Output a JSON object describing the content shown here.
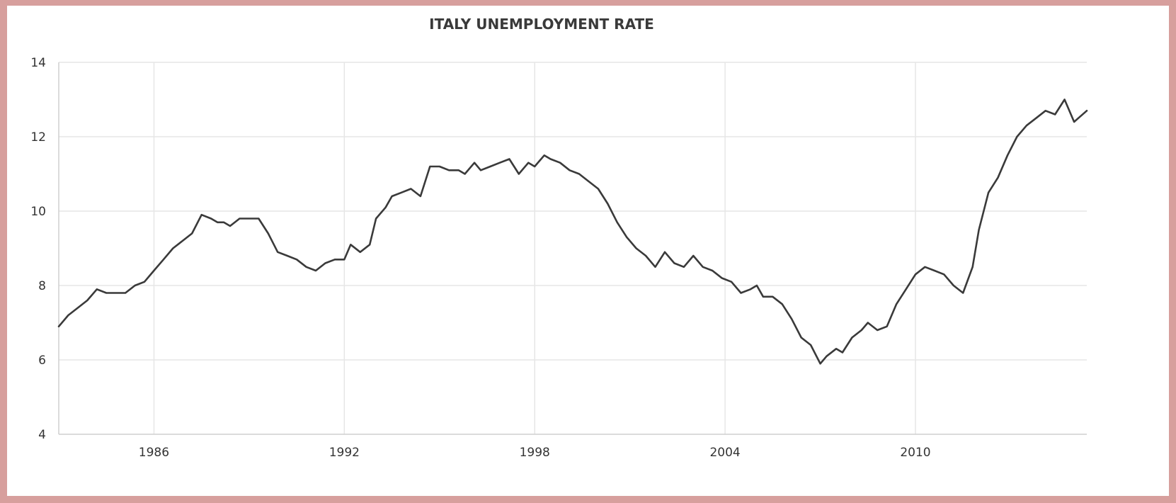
{
  "chart_data": {
    "type": "line",
    "title": "ITALY UNEMPLOYMENT RATE",
    "xlabel": "",
    "ylabel": "",
    "xlim": [
      1983.0,
      2015.4
    ],
    "ylim": [
      4,
      14
    ],
    "x_ticks": [
      1986,
      1992,
      1998,
      2004,
      2010
    ],
    "x_tick_labels": [
      "1986",
      "1992",
      "1998",
      "2004",
      "2010"
    ],
    "y_ticks": [
      4,
      6,
      8,
      10,
      12,
      14
    ],
    "y_tick_labels": [
      "4",
      "6",
      "8",
      "10",
      "12",
      "14"
    ],
    "grid": true,
    "legend": "none",
    "colors": {
      "line": "#3a3a3a",
      "grid": "#e6e6e6"
    },
    "series": [
      {
        "x": [
          1983.0,
          1983.3,
          1983.6,
          1983.9,
          1984.2,
          1984.5,
          1984.8,
          1985.1,
          1985.4,
          1985.7,
          1986.0,
          1986.3,
          1986.6,
          1986.9,
          1987.2,
          1987.5,
          1987.8,
          1988.0,
          1988.2,
          1988.4,
          1988.7,
          1989.0,
          1989.3,
          1989.6,
          1989.9,
          1990.2,
          1990.5,
          1990.8,
          1991.1,
          1991.4,
          1991.7,
          1992.0,
          1992.2,
          1992.5,
          1992.8,
          1993.0,
          1993.3,
          1993.5,
          1993.8,
          1994.1,
          1994.4,
          1994.7,
          1995.0,
          1995.3,
          1995.6,
          1995.8,
          1996.1,
          1996.3,
          1996.6,
          1996.9,
          1997.2,
          1997.5,
          1997.8,
          1998.0,
          1998.3,
          1998.5,
          1998.8,
          1999.1,
          1999.4,
          1999.7,
          2000.0,
          2000.3,
          2000.6,
          2000.9,
          2001.2,
          2001.5,
          2001.8,
          2002.1,
          2002.4,
          2002.7,
          2003.0,
          2003.3,
          2003.6,
          2003.9,
          2004.2,
          2004.5,
          2004.8,
          2005.0,
          2005.2,
          2005.5,
          2005.8,
          2006.1,
          2006.4,
          2006.7,
          2007.0,
          2007.2,
          2007.5,
          2007.7,
          2008.0,
          2008.3,
          2008.5,
          2008.8,
          2009.1,
          2009.4,
          2009.7,
          2010.0,
          2010.3,
          2010.6,
          2010.9,
          2011.2,
          2011.5,
          2011.8,
          2012.0,
          2012.3,
          2012.6,
          2012.9,
          2013.2,
          2013.5,
          2013.8,
          2014.1,
          2014.4,
          2014.7,
          2015.0,
          2015.4
        ],
        "values": [
          6.9,
          7.2,
          7.4,
          7.6,
          7.9,
          7.8,
          7.8,
          7.8,
          8.0,
          8.1,
          8.4,
          8.7,
          9.0,
          9.2,
          9.4,
          9.9,
          9.8,
          9.7,
          9.7,
          9.6,
          9.8,
          9.8,
          9.8,
          9.4,
          8.9,
          8.8,
          8.7,
          8.5,
          8.4,
          8.6,
          8.7,
          8.7,
          9.1,
          8.9,
          9.1,
          9.8,
          10.1,
          10.4,
          10.5,
          10.6,
          10.4,
          11.2,
          11.2,
          11.1,
          11.1,
          11.0,
          11.3,
          11.1,
          11.2,
          11.3,
          11.4,
          11.0,
          11.3,
          11.2,
          11.5,
          11.4,
          11.3,
          11.1,
          11.0,
          10.8,
          10.6,
          10.2,
          9.7,
          9.3,
          9.0,
          8.8,
          8.5,
          8.9,
          8.6,
          8.5,
          8.8,
          8.5,
          8.4,
          8.2,
          8.1,
          7.8,
          7.9,
          8.0,
          7.7,
          7.7,
          7.5,
          7.1,
          6.6,
          6.4,
          5.9,
          6.1,
          6.3,
          6.2,
          6.6,
          6.8,
          7.0,
          6.8,
          6.9,
          7.5,
          7.9,
          8.3,
          8.5,
          8.4,
          8.3,
          8.0,
          7.8,
          8.5,
          9.5,
          10.5,
          10.9,
          11.5,
          12.0,
          12.3,
          12.5,
          12.7,
          12.6,
          13.0,
          12.4,
          12.7
        ]
      }
    ]
  }
}
